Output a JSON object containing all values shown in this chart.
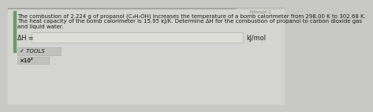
{
  "bg_color": "#c8c8c4",
  "top_strip_color": "#a0a09c",
  "header_right_color": "#d8d8d4",
  "left_bar_color": "#6a9a6a",
  "body_lines": [
    "The combustion of 2.224 g of propanol (C₃H₇OH) increases the temperature of a bomb calorimeter from 298.00 K to 302.68 K.",
    "The heat capacity of the bomb calorimeter is 15.95 kJ/K. Determine ΔH for the combustion of propanol to carbon dioxide gas",
    "and liquid water."
  ],
  "label_text": "ΔH =",
  "unit_text": "kJ/mol",
  "tools_text": "✓ TOOLS",
  "x10_text": "×10²",
  "input_box_color": "#deded8",
  "input_box_border": "#b8b8b2",
  "font_size_body": 5.0,
  "font_size_label": 5.8,
  "font_size_tools": 5.0,
  "tools_box_color": "#c0c0bc",
  "tools_box_border": "#a8a8a4",
  "attempt_label": "Attempt 2",
  "macmillan_color": "#888880",
  "top_bar_height": 2,
  "content_bg": "#d4d4d0",
  "text_color": "#1a1a1a",
  "gray_text": "#888880"
}
